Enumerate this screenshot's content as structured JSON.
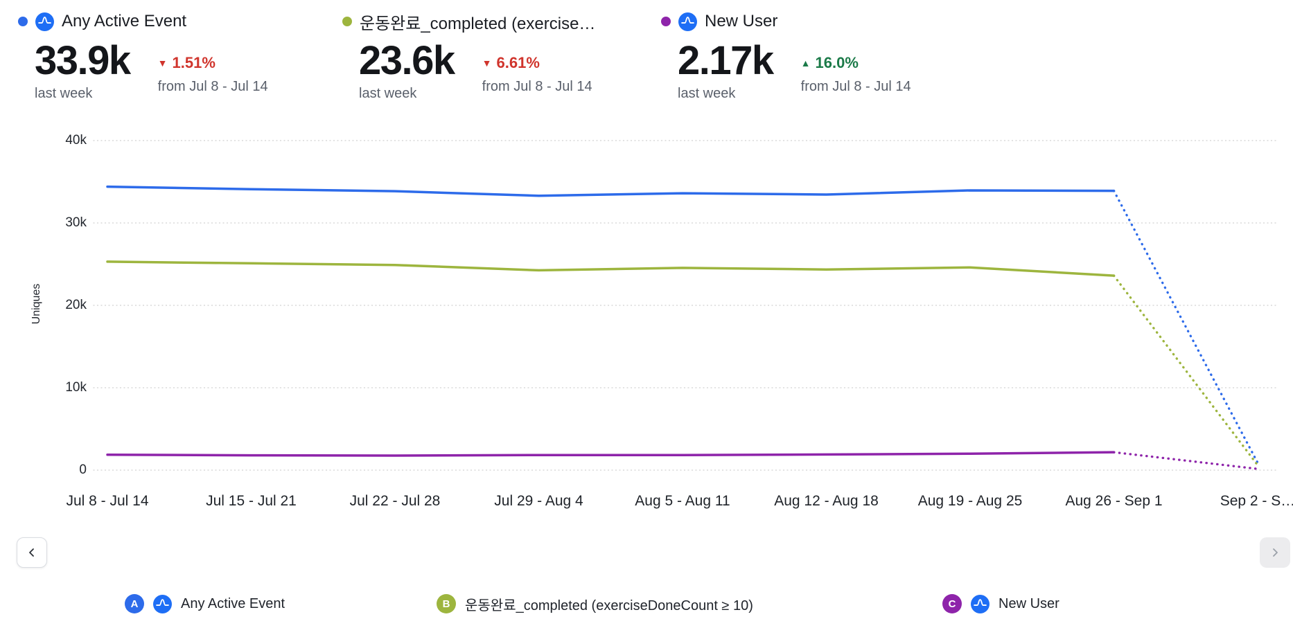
{
  "metrics": [
    {
      "title": "Any Active Event",
      "value": "33.9k",
      "period": "last week",
      "change": "1.51%",
      "change_direction": "down",
      "change_icon": "▼",
      "change_color": "#d0342c",
      "compare": "from Jul 8 - Jul 14",
      "color": "#2d6bea",
      "has_amplitude_icon": true
    },
    {
      "title": "운동완료_completed (exercise…",
      "value": "23.6k",
      "period": "last week",
      "change": "6.61%",
      "change_direction": "down",
      "change_icon": "▼",
      "change_color": "#d0342c",
      "compare": "from Jul 8 - Jul 14",
      "color": "#9db53e",
      "has_amplitude_icon": false
    },
    {
      "title": "New User",
      "value": "2.17k",
      "period": "last week",
      "change": "16.0%",
      "change_direction": "up",
      "change_icon": "▲",
      "change_color": "#1b7a48",
      "compare": "from Jul 8 - Jul 14",
      "color": "#8e24aa",
      "has_amplitude_icon": true
    }
  ],
  "chart_data": {
    "type": "line",
    "title": "",
    "xlabel": "",
    "ylabel": "Uniques",
    "ylim": [
      0,
      40000
    ],
    "grid": true,
    "legend_position": "bottom",
    "yticks": [
      {
        "value": 0,
        "label": "0"
      },
      {
        "value": 10000,
        "label": "10k"
      },
      {
        "value": 20000,
        "label": "20k"
      },
      {
        "value": 30000,
        "label": "30k"
      },
      {
        "value": 40000,
        "label": "40k"
      }
    ],
    "categories": [
      "Jul 8 - Jul 14",
      "Jul 15 - Jul 21",
      "Jul 22 - Jul 28",
      "Jul 29 - Aug 4",
      "Aug 5 - Aug 11",
      "Aug 12 - Aug 18",
      "Aug 19 - Aug 25",
      "Aug 26 - Sep 1",
      "Sep 2 - S…"
    ],
    "incomplete_from_index": 7,
    "series": [
      {
        "name": "Any Active Event",
        "color": "#2d6bea",
        "values": [
          34400,
          34100,
          33850,
          33300,
          33600,
          33450,
          33950,
          33900,
          900
        ]
      },
      {
        "name": "운동완료_completed (exerciseDoneCount ≥ 10)",
        "color": "#9db53e",
        "values": [
          25300,
          25100,
          24900,
          24250,
          24550,
          24350,
          24600,
          23600,
          600
        ]
      },
      {
        "name": "New User",
        "color": "#8e24aa",
        "values": [
          1870,
          1800,
          1760,
          1830,
          1830,
          1900,
          2000,
          2170,
          150
        ]
      }
    ]
  },
  "pagination": {
    "prev_icon": "chevron-left",
    "next_icon": "chevron-right"
  },
  "legend": [
    {
      "badge": "A",
      "label": "Any Active Event",
      "color": "#2d6bea",
      "has_amplitude_icon": true
    },
    {
      "badge": "B",
      "label": "운동완료_completed (exerciseDoneCount ≥ 10)",
      "color": "#9db53e",
      "has_amplitude_icon": false
    },
    {
      "badge": "C",
      "label": "New User",
      "color": "#8e24aa",
      "has_amplitude_icon": true
    }
  ],
  "colors": {
    "negative_change": "#d0342c",
    "positive_change": "#1b7a48",
    "amplitude_logo_blue": "#1e6ef5",
    "gridline": "#d0d0d0",
    "axis_text": "#23272e",
    "muted_text": "#595f6a"
  }
}
